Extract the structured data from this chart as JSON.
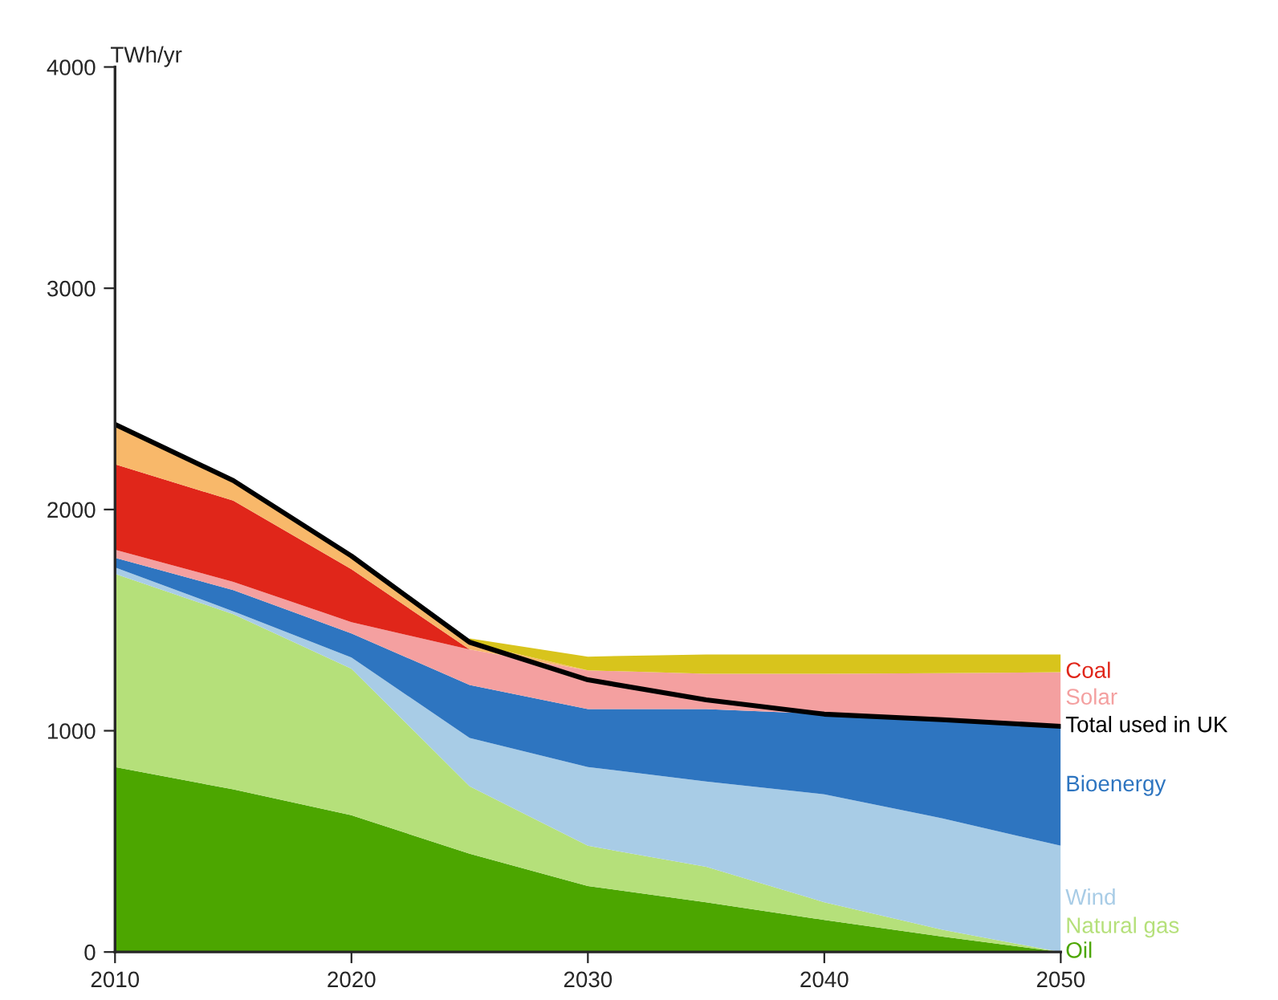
{
  "chart_data": {
    "type": "area",
    "stacked": true,
    "ylabel": "TWh/yr",
    "x": [
      2010,
      2015,
      2020,
      2025,
      2030,
      2035,
      2040,
      2045,
      2050
    ],
    "xlim": [
      2010,
      2050
    ],
    "xticks": [
      2010,
      2020,
      2030,
      2040,
      2050
    ],
    "ylim": [
      0,
      4000
    ],
    "yticks": [
      0,
      1000,
      2000,
      3000,
      4000
    ],
    "grid": false,
    "legend": false,
    "series": [
      {
        "name": "Oil",
        "color": "#4ca600",
        "values": [
          836,
          735,
          618,
          444,
          298,
          225,
          145,
          70,
          0
        ]
      },
      {
        "name": "Natural gas",
        "color": "#b5e07a",
        "values": [
          873,
          792,
          662,
          305,
          182,
          160,
          80,
          30,
          0
        ]
      },
      {
        "name": "Wind",
        "color": "#a8cce6",
        "values": [
          29,
          13,
          51,
          218,
          356,
          386,
          488,
          504,
          480
        ]
      },
      {
        "name": "Bioenergy",
        "color": "#2e75c0",
        "values": [
          44,
          96,
          109,
          240,
          262,
          327,
          363,
          451,
          545
        ]
      },
      {
        "name": "Solar",
        "color": "#f4a0a0",
        "values": [
          36,
          37,
          51,
          160,
          175,
          160,
          182,
          205,
          240
        ]
      },
      {
        "name": "Coal",
        "color": "#e0261a",
        "values": [
          386,
          367,
          239,
          0,
          0,
          0,
          0,
          0,
          0
        ]
      },
      {
        "color": "#f8b86a",
        "values": [
          181,
          91,
          60,
          30,
          0,
          0,
          0,
          0,
          0
        ]
      },
      {
        "color": "#d8c41c",
        "values": [
          null,
          null,
          null,
          20,
          62,
          87,
          87,
          85,
          80
        ]
      },
      {
        "name": "Total used in UK",
        "type": "line",
        "color": "#000000",
        "values": [
          2385,
          2131,
          1790,
          1400,
          1230,
          1140,
          1075,
          1050,
          1020
        ]
      }
    ]
  }
}
